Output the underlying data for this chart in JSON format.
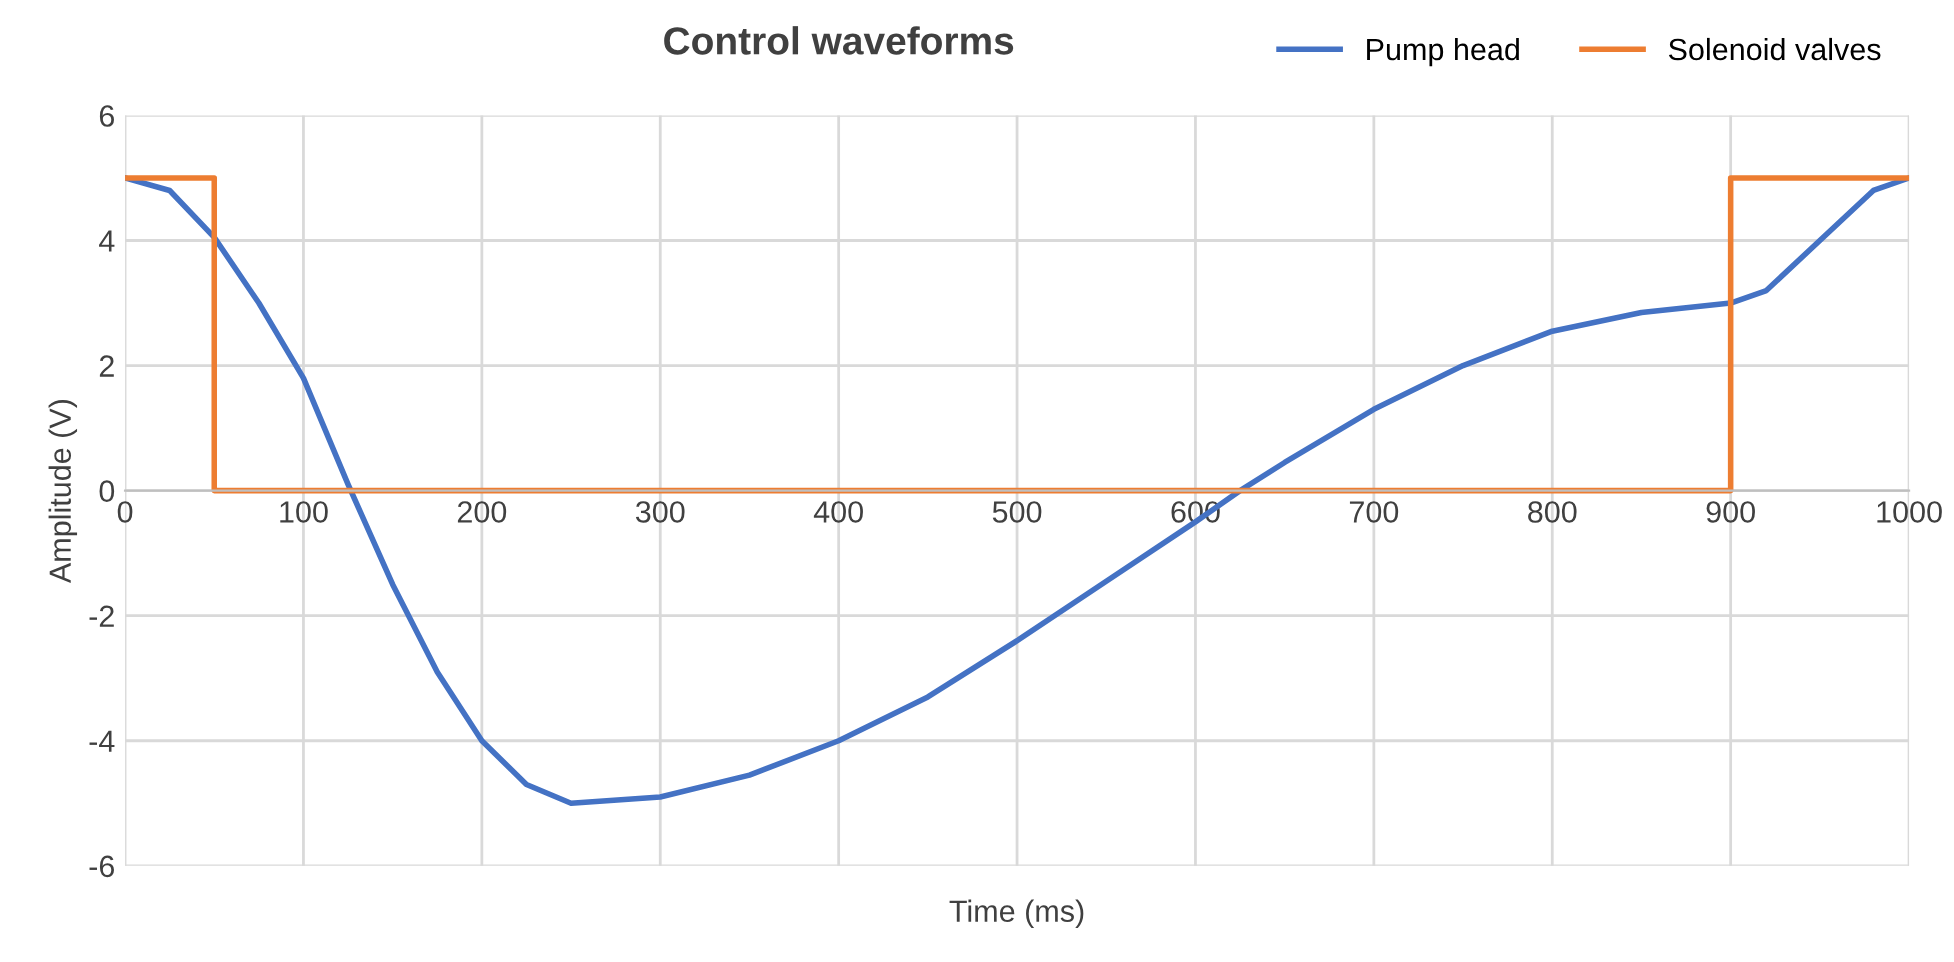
{
  "chart_data": {
    "type": "line",
    "title": "Control waveforms",
    "xlabel": "Time (ms)",
    "ylabel": "Amplitude (V)",
    "xlim": [
      0,
      1000
    ],
    "xticks": [
      0,
      100,
      200,
      300,
      400,
      500,
      600,
      700,
      800,
      900,
      1000
    ],
    "ylim": [
      -6,
      6
    ],
    "yticks": [
      -6,
      -4,
      -2,
      0,
      2,
      4,
      6
    ],
    "grid": true,
    "legend": "top right",
    "series": [
      {
        "name": "Pump head",
        "color": "#4472c4",
        "x": [
          0,
          25,
          50,
          75,
          100,
          125,
          150,
          175,
          200,
          225,
          250,
          300,
          350,
          400,
          450,
          500,
          550,
          600,
          625,
          650,
          700,
          750,
          800,
          850,
          900,
          920,
          950,
          980,
          1000
        ],
        "values": [
          5,
          4.8,
          4.05,
          3.0,
          1.8,
          0.1,
          -1.5,
          -2.9,
          -4.0,
          -4.7,
          -5,
          -4.9,
          -4.55,
          -4.0,
          -3.3,
          -2.4,
          -1.45,
          -0.5,
          0,
          0.45,
          1.3,
          2.0,
          2.55,
          2.85,
          3.0,
          3.2,
          4.0,
          4.8,
          5
        ]
      },
      {
        "name": "Solenoid valves",
        "type": "step",
        "color": "#ed7d31",
        "x": [
          0,
          50,
          900,
          1000
        ],
        "values": [
          5,
          0,
          5,
          5
        ]
      }
    ]
  }
}
